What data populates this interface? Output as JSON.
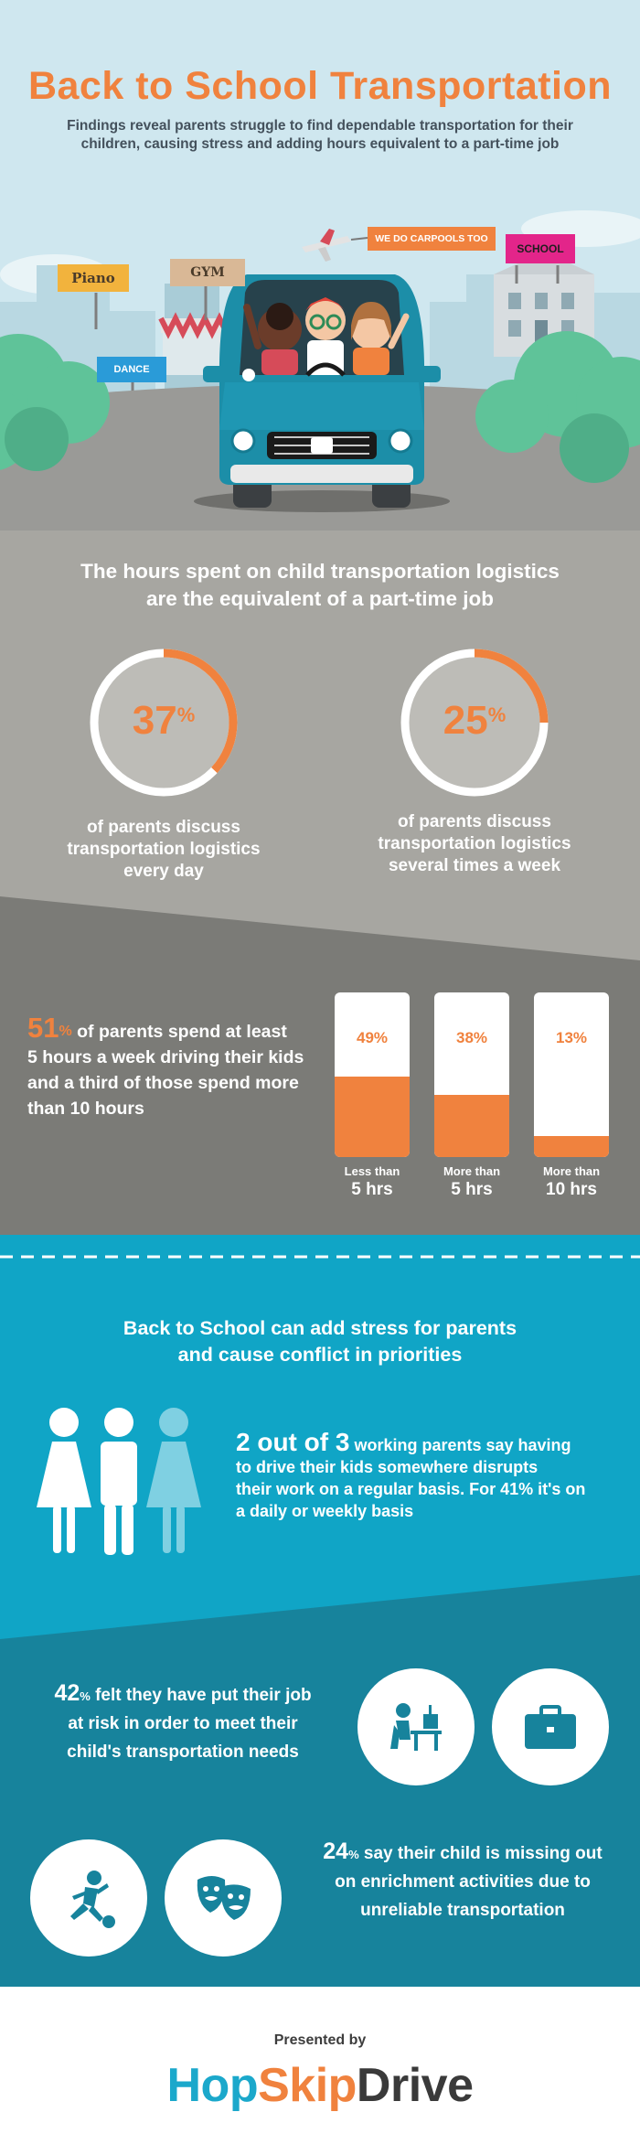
{
  "header": {
    "title": "Back to School Transportation",
    "subtitle": "Findings reveal parents struggle to find dependable transportation for their children, causing stress and adding hours equivalent to a part-time job"
  },
  "illustration": {
    "sign_piano": "Piano",
    "sign_gym": "GYM",
    "sign_dance": "DANCE",
    "sign_school": "SCHOOL",
    "banner": "WE DO CARPOOLS TOO"
  },
  "hours": {
    "heading_line1": "The hours spent on child transportation logistics",
    "heading_line2": "are the equivalent of a part-time job",
    "ring1": {
      "value": "37",
      "percent_sign": "%",
      "fraction": 0.37,
      "caption_line1": "of parents discuss",
      "caption_line2": "transportation logistics",
      "caption_line3": "every day"
    },
    "ring2": {
      "value": "25",
      "percent_sign": "%",
      "fraction": 0.25,
      "caption_line1": "of parents discuss",
      "caption_line2": "transportation logistics",
      "caption_line3": "several times a week"
    }
  },
  "driving": {
    "pct": "51",
    "percent_sign": "%",
    "line1": "of parents spend at least",
    "line2": "5 hours a week driving their kids",
    "line3": "and a third of those spend more",
    "line4_pre": "than ",
    "line4_bold": "10 hours",
    "bars": [
      {
        "pct_label": "49%",
        "fraction": 0.49,
        "label_top": "Less than",
        "label_bottom": "5 hrs"
      },
      {
        "pct_label": "38%",
        "fraction": 0.38,
        "label_top": "More than",
        "label_bottom": "5 hrs"
      },
      {
        "pct_label": "13%",
        "fraction": 0.13,
        "label_top": "More than",
        "label_bottom": "10 hrs"
      }
    ]
  },
  "stress": {
    "heading_line1": "Back to School can add stress for parents",
    "heading_line2": "and cause conflict in priorities",
    "two_of_three": {
      "big": "2 out of 3",
      "line1": " working parents say having",
      "line2": "to drive their kids somewhere disrupts",
      "line3": "their work on a regular basis. For 41% it's on",
      "line4": "a daily or weekly basis"
    },
    "job_risk": {
      "pct": "42",
      "percent_sign": "%",
      "line1": " felt they have put their job",
      "line2": "at risk in order to meet their",
      "line3": "child's transportation needs"
    },
    "enrichment": {
      "pct": "24",
      "percent_sign": "%",
      "line1": " say their child is missing out",
      "line2": "on enrichment activities due to",
      "line3": "unreliable transportation"
    },
    "icons": [
      "person-icon",
      "person-icon",
      "person-icon",
      "desk-worker-icon",
      "briefcase-icon",
      "soccer-player-icon",
      "theater-masks-icon"
    ]
  },
  "footer": {
    "presented_by": "Presented by",
    "brand_hop": "Hop",
    "brand_skip": "Skip",
    "brand_drive": "Drive"
  },
  "colors": {
    "orange": "#f0823e",
    "sky": "#cfe7ef",
    "grey_light": "#a7a6a1",
    "grey_dark": "#7b7b77",
    "blue": "#10a5c6",
    "blue_dark": "#17839c",
    "teal_brand": "#1ba8cb"
  }
}
